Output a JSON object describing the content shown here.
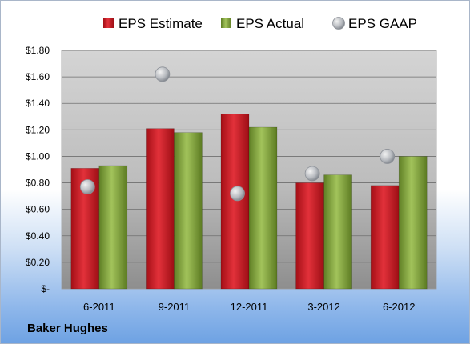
{
  "chart_data": {
    "type": "bar",
    "categories": [
      "6-2011",
      "9-2011",
      "12-2011",
      "3-2012",
      "6-2012"
    ],
    "series": [
      {
        "name": "EPS Estimate",
        "kind": "bar",
        "color": "#c0151f",
        "values": [
          0.91,
          1.21,
          1.32,
          0.8,
          0.78
        ]
      },
      {
        "name": "EPS Actual",
        "kind": "bar",
        "color": "#7ea23a",
        "values": [
          0.93,
          1.18,
          1.22,
          0.86,
          1.0
        ]
      },
      {
        "name": "EPS GAAP",
        "kind": "scatter",
        "color": "#b8bcc2",
        "values": [
          0.77,
          1.62,
          0.72,
          0.87,
          1.0
        ]
      }
    ],
    "ylim": [
      0,
      1.8
    ],
    "yticks": [
      0,
      0.2,
      0.4,
      0.6,
      0.8,
      1.0,
      1.2,
      1.4,
      1.6,
      1.8
    ],
    "ytick_labels": [
      "$-",
      "$0.20",
      "$0.40",
      "$0.60",
      "$0.80",
      "$1.00",
      "$1.20",
      "$1.40",
      "$1.60",
      "$1.80"
    ],
    "grid": true,
    "legend_position": "top"
  },
  "company": "Baker Hughes"
}
